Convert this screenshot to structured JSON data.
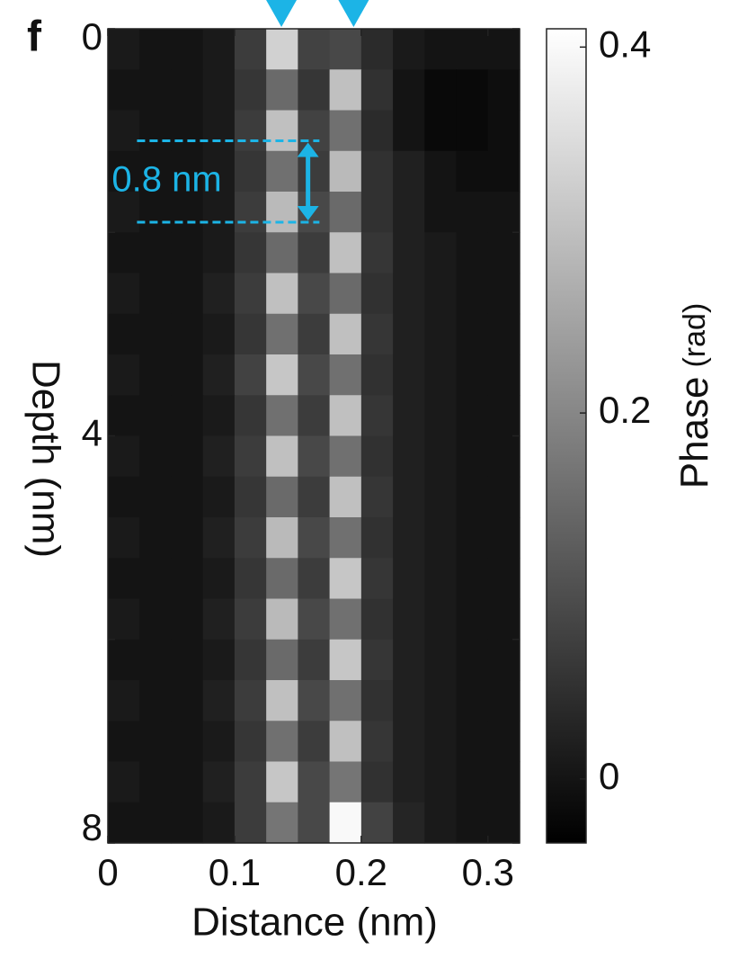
{
  "chart_data": {
    "type": "heatmap",
    "panel_label": "f",
    "xlabel": "Distance (nm)",
    "ylabel": "Depth (nm)",
    "xlim": [
      0,
      0.325
    ],
    "xticks": [
      0,
      0.1,
      0.2,
      0.3
    ],
    "ylim": [
      0,
      8
    ],
    "y_inverted": true,
    "yticks": [
      0,
      4,
      8
    ],
    "yminor_ticks": [
      2,
      6
    ],
    "colormap": "gray",
    "zlim": [
      -0.035,
      0.41
    ],
    "zticks": [
      0,
      0.2,
      0.4
    ],
    "colorbar_label": "Phase",
    "colorbar_unit": "(rad)",
    "marker_color": "#1cb4e6",
    "markers_x": [
      0.137,
      0.194
    ],
    "spacing_annotation": {
      "label": "0.8 nm",
      "depths": [
        1.1,
        1.9
      ],
      "x_range": [
        0.023,
        0.167
      ],
      "arrow_x": 0.158
    },
    "z": [
      [
        0.01,
        0.0,
        0.0,
        0.01,
        0.07,
        0.33,
        0.08,
        0.09,
        0.04,
        0.01,
        0.0,
        0.0,
        0.0
      ],
      [
        0.0,
        0.0,
        0.0,
        0.01,
        0.06,
        0.15,
        0.06,
        0.3,
        0.05,
        0.0,
        -0.02,
        -0.02,
        -0.01
      ],
      [
        0.01,
        0.0,
        0.0,
        0.01,
        0.07,
        0.3,
        0.08,
        0.16,
        0.04,
        0.0,
        -0.02,
        -0.02,
        -0.01
      ],
      [
        0.0,
        0.0,
        0.0,
        0.01,
        0.06,
        0.16,
        0.07,
        0.29,
        0.05,
        0.02,
        0.0,
        -0.01,
        -0.01
      ],
      [
        0.01,
        0.0,
        0.0,
        0.01,
        0.07,
        0.29,
        0.09,
        0.15,
        0.05,
        0.02,
        0.0,
        0.0,
        0.0
      ],
      [
        0.0,
        0.0,
        0.0,
        0.01,
        0.06,
        0.15,
        0.07,
        0.3,
        0.06,
        0.02,
        0.01,
        0.0,
        0.0
      ],
      [
        0.01,
        0.0,
        0.0,
        0.02,
        0.07,
        0.3,
        0.09,
        0.15,
        0.05,
        0.02,
        0.01,
        0.0,
        0.0
      ],
      [
        0.0,
        0.0,
        0.0,
        0.01,
        0.06,
        0.16,
        0.07,
        0.3,
        0.06,
        0.02,
        0.01,
        0.0,
        0.0
      ],
      [
        0.01,
        0.0,
        0.0,
        0.02,
        0.08,
        0.31,
        0.09,
        0.16,
        0.05,
        0.02,
        0.01,
        0.0,
        0.0
      ],
      [
        0.0,
        0.0,
        0.0,
        0.01,
        0.06,
        0.16,
        0.07,
        0.3,
        0.06,
        0.02,
        0.01,
        0.0,
        0.0
      ],
      [
        0.01,
        0.0,
        0.0,
        0.02,
        0.07,
        0.3,
        0.09,
        0.16,
        0.05,
        0.02,
        0.01,
        0.0,
        0.0
      ],
      [
        0.0,
        0.0,
        0.0,
        0.01,
        0.06,
        0.15,
        0.07,
        0.3,
        0.06,
        0.02,
        0.01,
        0.0,
        0.0
      ],
      [
        0.01,
        0.0,
        0.0,
        0.02,
        0.07,
        0.29,
        0.09,
        0.16,
        0.05,
        0.02,
        0.01,
        0.0,
        0.0
      ],
      [
        0.0,
        0.0,
        0.0,
        0.01,
        0.06,
        0.15,
        0.07,
        0.31,
        0.06,
        0.02,
        0.01,
        0.0,
        0.0
      ],
      [
        0.01,
        0.0,
        0.0,
        0.02,
        0.07,
        0.29,
        0.09,
        0.16,
        0.05,
        0.02,
        0.01,
        0.0,
        0.0
      ],
      [
        0.0,
        0.0,
        0.0,
        0.01,
        0.06,
        0.15,
        0.07,
        0.31,
        0.06,
        0.02,
        0.01,
        0.0,
        0.0
      ],
      [
        0.01,
        0.0,
        0.0,
        0.02,
        0.07,
        0.3,
        0.09,
        0.16,
        0.05,
        0.02,
        0.01,
        0.0,
        0.0
      ],
      [
        0.0,
        0.0,
        0.0,
        0.01,
        0.06,
        0.16,
        0.07,
        0.3,
        0.06,
        0.02,
        0.01,
        0.0,
        0.0
      ],
      [
        0.01,
        0.0,
        0.0,
        0.02,
        0.07,
        0.31,
        0.09,
        0.17,
        0.05,
        0.02,
        0.01,
        0.0,
        0.0
      ],
      [
        0.0,
        0.0,
        0.0,
        0.01,
        0.07,
        0.17,
        0.09,
        0.4,
        0.08,
        0.03,
        0.01,
        0.0,
        0.0
      ]
    ]
  }
}
